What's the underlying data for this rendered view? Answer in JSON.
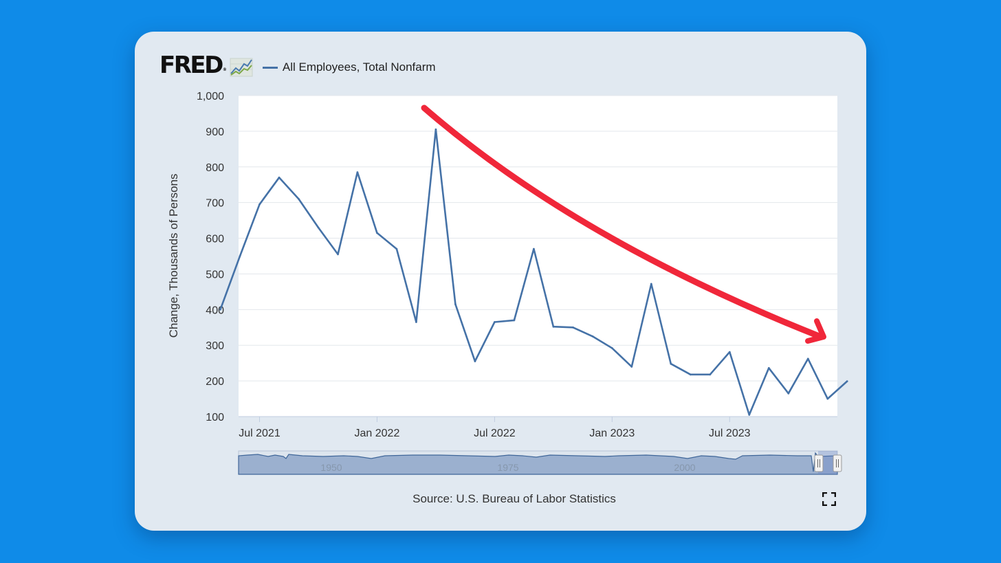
{
  "logo": {
    "text": "FRED",
    "mark": "®"
  },
  "legend": {
    "label": "All Employees, Total Nonfarm",
    "color": "#4572a7"
  },
  "source": "Source: U.S. Bureau of Labor Statistics",
  "icons": {
    "fullscreen": "fullscreen-icon",
    "logo_graph": "line-graph-icon"
  },
  "colors": {
    "background": "#0f8be8",
    "card": "#e1e9f1",
    "series": "#4572a7",
    "arrow": "#f0273a",
    "navigator": "#9bb0cf"
  },
  "chart_data": {
    "type": "line",
    "title": "All Employees, Total Nonfarm",
    "ylabel": "Change, Thousands of Persons",
    "xlabel": "",
    "ylim": [
      100,
      1000
    ],
    "yticks": [
      100,
      200,
      300,
      400,
      500,
      600,
      700,
      800,
      900,
      1000
    ],
    "yticklabels": [
      "100",
      "200",
      "300",
      "400",
      "500",
      "600",
      "700",
      "800",
      "900",
      "1,000"
    ],
    "xticks": [
      {
        "label": "Jul 2021",
        "month_index": 2
      },
      {
        "label": "Jan 2022",
        "month_index": 8
      },
      {
        "label": "Jul 2022",
        "month_index": 14
      },
      {
        "label": "Jan 2023",
        "month_index": 20
      },
      {
        "label": "Jul 2023",
        "month_index": 26
      }
    ],
    "x_range_months": [
      0.93,
      31.5
    ],
    "series": [
      {
        "name": "All Employees, Total Nonfarm",
        "start": "Apr 2021",
        "values": [
          400,
          550,
          695,
          770,
          710,
          630,
          555,
          785,
          615,
          570,
          365,
          905,
          415,
          255,
          365,
          370,
          570,
          352,
          350,
          325,
          292,
          240,
          472,
          248,
          218,
          218,
          281,
          105,
          236,
          165,
          262,
          150,
          199
        ]
      }
    ],
    "grid": true,
    "legend_position": "top-left",
    "navigator": {
      "tick_labels": [
        "1950",
        "1975",
        "2000"
      ]
    },
    "annotation": {
      "type": "arrow",
      "direction": "downward-trend"
    }
  }
}
